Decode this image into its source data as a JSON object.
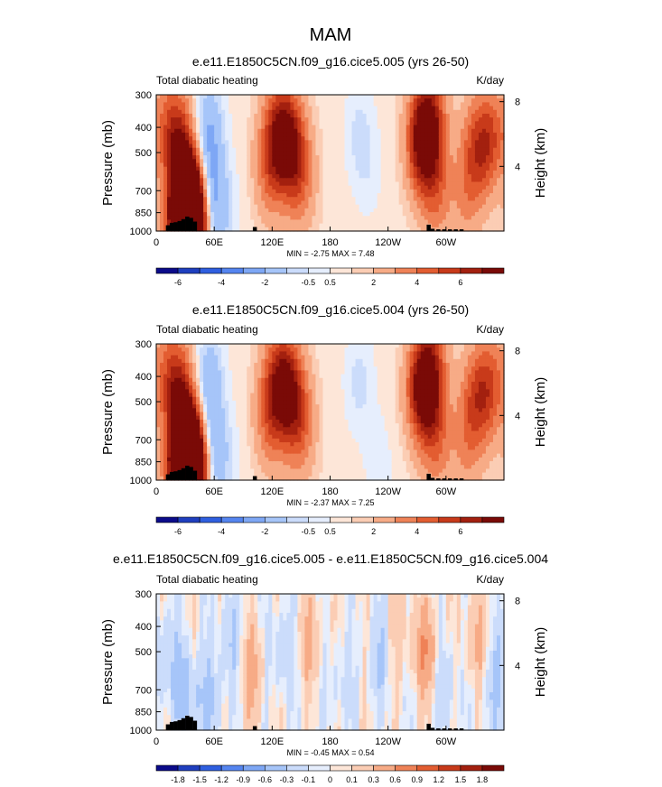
{
  "figure_title": "MAM",
  "chart_data": [
    {
      "type": "heatmap",
      "title": "e.e11.E1850C5CN.f09_g16.cice5.005 (yrs 26-50)",
      "left_string": "Total diabatic heating",
      "right_string": "K/day",
      "ylabel": "Pressure (mb)",
      "ylabel_right": "Height (km)",
      "pressure_ticks": [
        "300",
        "400",
        "500",
        "700",
        "850",
        "1000"
      ],
      "height_ticks": [
        "8",
        "4"
      ],
      "lon_ticks": [
        "0",
        "60E",
        "120E",
        "180",
        "120W",
        "60W"
      ],
      "stats": "MIN = -2.75  MAX =  7.48",
      "colorbar_labels": [
        "-6",
        "-4",
        "-2",
        "-0.5",
        "0.5",
        "2",
        "4",
        "6"
      ],
      "palette": [
        "#0b0b8a",
        "#1f3fbf",
        "#2f5fe0",
        "#5585f0",
        "#7ea7f5",
        "#a6c5f9",
        "#cbdcfb",
        "#e6eefd",
        "#fde6d8",
        "#fbcdb4",
        "#f7ab86",
        "#ef8257",
        "#e35d31",
        "#c83a1a",
        "#a3200f",
        "#7a0a07"
      ],
      "features": [
        {
          "lon": 25,
          "p": 1000,
          "v": 5.0
        },
        {
          "lon": 38,
          "p": 950,
          "v": 7.48
        },
        {
          "lon": 36,
          "p": 870,
          "v": 6.0
        },
        {
          "lon": 32,
          "p": 780,
          "v": 4.5
        },
        {
          "lon": 28,
          "p": 650,
          "v": 2.5
        },
        {
          "lon": 22,
          "p": 450,
          "v": 3.0
        },
        {
          "lon": 15,
          "p": 380,
          "v": 2.0
        },
        {
          "lon": 55,
          "p": 400,
          "v": -1.8
        },
        {
          "lon": 52,
          "p": 600,
          "v": -1.5
        },
        {
          "lon": 52,
          "p": 880,
          "v": -2.75
        },
        {
          "lon": 70,
          "p": 820,
          "v": -1.0
        },
        {
          "lon": 140,
          "p": 480,
          "v": 4.5
        },
        {
          "lon": 128,
          "p": 400,
          "v": 4.0
        },
        {
          "lon": 118,
          "p": 560,
          "v": 3.0
        },
        {
          "lon": 150,
          "p": 650,
          "v": 2.0
        },
        {
          "lon": 210,
          "p": 420,
          "v": -0.9
        },
        {
          "lon": 220,
          "p": 600,
          "v": -0.5
        },
        {
          "lon": 275,
          "p": 450,
          "v": 6.0
        },
        {
          "lon": 285,
          "p": 380,
          "v": 4.0
        },
        {
          "lon": 290,
          "p": 700,
          "v": 2.5
        },
        {
          "lon": 330,
          "p": 500,
          "v": 3.0
        },
        {
          "lon": 345,
          "p": 440,
          "v": 3.5
        },
        {
          "lon": 320,
          "p": 750,
          "v": 1.5
        }
      ]
    },
    {
      "type": "heatmap",
      "title": "e.e11.E1850C5CN.f09_g16.cice5.004 (yrs 26-50)",
      "left_string": "Total diabatic heating",
      "right_string": "K/day",
      "ylabel": "Pressure (mb)",
      "ylabel_right": "Height (km)",
      "pressure_ticks": [
        "300",
        "400",
        "500",
        "700",
        "850",
        "1000"
      ],
      "height_ticks": [
        "8",
        "4"
      ],
      "lon_ticks": [
        "0",
        "60E",
        "120E",
        "180",
        "120W",
        "60W"
      ],
      "stats": "MIN = -2.37  MAX =  7.25",
      "colorbar_labels": [
        "-6",
        "-4",
        "-2",
        "-0.5",
        "0.5",
        "2",
        "4",
        "6"
      ],
      "palette": [
        "#0b0b8a",
        "#1f3fbf",
        "#2f5fe0",
        "#5585f0",
        "#7ea7f5",
        "#a6c5f9",
        "#cbdcfb",
        "#e6eefd",
        "#fde6d8",
        "#fbcdb4",
        "#f7ab86",
        "#ef8257",
        "#e35d31",
        "#c83a1a",
        "#a3200f",
        "#7a0a07"
      ],
      "features": [
        {
          "lon": 25,
          "p": 1000,
          "v": 5.0
        },
        {
          "lon": 38,
          "p": 950,
          "v": 7.25
        },
        {
          "lon": 36,
          "p": 870,
          "v": 5.8
        },
        {
          "lon": 32,
          "p": 780,
          "v": 4.3
        },
        {
          "lon": 28,
          "p": 650,
          "v": 2.5
        },
        {
          "lon": 22,
          "p": 450,
          "v": 3.0
        },
        {
          "lon": 15,
          "p": 380,
          "v": 2.0
        },
        {
          "lon": 55,
          "p": 400,
          "v": -1.6
        },
        {
          "lon": 52,
          "p": 600,
          "v": -1.3
        },
        {
          "lon": 52,
          "p": 880,
          "v": -2.37
        },
        {
          "lon": 70,
          "p": 820,
          "v": -0.9
        },
        {
          "lon": 140,
          "p": 480,
          "v": 4.3
        },
        {
          "lon": 128,
          "p": 400,
          "v": 3.8
        },
        {
          "lon": 118,
          "p": 560,
          "v": 3.0
        },
        {
          "lon": 150,
          "p": 650,
          "v": 2.0
        },
        {
          "lon": 210,
          "p": 420,
          "v": -1.0
        },
        {
          "lon": 230,
          "p": 860,
          "v": -0.6
        },
        {
          "lon": 275,
          "p": 450,
          "v": 5.8
        },
        {
          "lon": 285,
          "p": 380,
          "v": 4.0
        },
        {
          "lon": 290,
          "p": 700,
          "v": 2.5
        },
        {
          "lon": 330,
          "p": 500,
          "v": 3.0
        },
        {
          "lon": 345,
          "p": 440,
          "v": 3.3
        },
        {
          "lon": 320,
          "p": 750,
          "v": 1.5
        }
      ]
    },
    {
      "type": "heatmap",
      "title": "e.e11.E1850C5CN.f09_g16.cice5.005 - e.e11.E1850C5CN.f09_g16.cice5.004",
      "left_string": "Total diabatic heating",
      "right_string": "K/day",
      "ylabel": "Pressure (mb)",
      "ylabel_right": "Height (km)",
      "pressure_ticks": [
        "300",
        "400",
        "500",
        "700",
        "850",
        "1000"
      ],
      "height_ticks": [
        "8",
        "4"
      ],
      "lon_ticks": [
        "0",
        "60E",
        "120E",
        "180",
        "120W",
        "60W"
      ],
      "stats": "MIN = -0.45  MAX =  0.54",
      "colorbar_labels": [
        "-1.8",
        "-1.5",
        "-1.2",
        "-0.9",
        "-0.6",
        "-0.3",
        "-0.1",
        "0",
        "0.1",
        "0.3",
        "0.6",
        "0.9",
        "1.2",
        "1.5",
        "1.8"
      ],
      "palette": [
        "#0b0b8a",
        "#1f3fbf",
        "#2f5fe0",
        "#5585f0",
        "#7ea7f5",
        "#a6c5f9",
        "#cbdcfb",
        "#e6eefd",
        "#fde6d8",
        "#fbcdb4",
        "#f7ab86",
        "#ef8257",
        "#e35d31",
        "#c83a1a",
        "#a3200f",
        "#7a0a07"
      ],
      "features": [
        {
          "lon": 8,
          "p": 500,
          "v": -0.3
        },
        {
          "lon": 30,
          "p": 700,
          "v": -0.45
        },
        {
          "lon": 55,
          "p": 800,
          "v": -0.35
        },
        {
          "lon": 75,
          "p": 450,
          "v": -0.3
        },
        {
          "lon": 100,
          "p": 600,
          "v": 0.4
        },
        {
          "lon": 130,
          "p": 500,
          "v": -0.3
        },
        {
          "lon": 160,
          "p": 450,
          "v": 0.3
        },
        {
          "lon": 190,
          "p": 650,
          "v": -0.2
        },
        {
          "lon": 230,
          "p": 520,
          "v": -0.25
        },
        {
          "lon": 255,
          "p": 400,
          "v": 0.2
        },
        {
          "lon": 280,
          "p": 500,
          "v": 0.54
        },
        {
          "lon": 300,
          "p": 650,
          "v": -0.3
        },
        {
          "lon": 330,
          "p": 450,
          "v": 0.35
        },
        {
          "lon": 350,
          "p": 700,
          "v": -0.3
        }
      ]
    }
  ]
}
